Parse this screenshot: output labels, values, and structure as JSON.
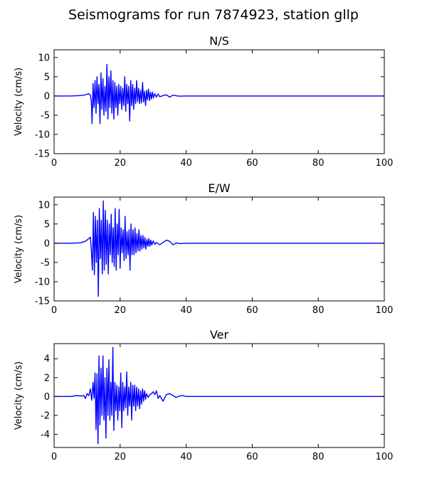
{
  "figure": {
    "suptitle": "Seismograms for run 7874923, station gllp"
  },
  "chart_data": [
    {
      "type": "line",
      "title": "N/S",
      "xlabel": "",
      "ylabel": "Velocity (cm/s)",
      "xlim": [
        0,
        100
      ],
      "ylim": [
        -15,
        12
      ],
      "xticks": [
        0,
        20,
        40,
        60,
        80,
        100
      ],
      "yticks": [
        -15,
        -10,
        -5,
        0,
        5,
        10
      ],
      "grid": false,
      "line_color": "#0000ff",
      "series": [
        {
          "x": [
            0,
            5,
            8,
            9.5,
            10.5,
            11.0,
            11.3,
            11.5,
            11.8,
            12.1,
            12.4,
            12.7,
            13.0,
            13.3,
            13.6,
            13.9,
            14.2,
            14.5,
            14.8,
            15.1,
            15.4,
            15.7,
            16.0,
            16.3,
            16.6,
            16.9,
            17.2,
            17.5,
            17.8,
            18.1,
            18.4,
            18.7,
            19.0,
            19.3,
            19.6,
            19.9,
            20.2,
            20.5,
            20.8,
            21.1,
            21.4,
            21.7,
            22.0,
            22.3,
            22.6,
            22.9,
            23.2,
            23.5,
            23.8,
            24.1,
            24.4,
            24.7,
            25.0,
            25.3,
            25.6,
            25.9,
            26.2,
            26.5,
            26.8,
            27.1,
            27.4,
            27.7,
            28.0,
            28.3,
            28.6,
            28.9,
            29.2,
            29.5,
            29.8,
            30.1,
            30.5,
            31,
            31.5,
            32,
            33,
            34,
            35,
            36,
            37,
            38,
            40,
            50,
            70,
            100
          ],
          "y": [
            0,
            0,
            0.1,
            0.3,
            0.6,
            0.2,
            -1.5,
            -7.2,
            3.2,
            -3.0,
            4.0,
            -4.5,
            5.0,
            -2.0,
            3.0,
            -7.2,
            6.0,
            -3.5,
            4.5,
            -5.0,
            2.5,
            -4.0,
            8.2,
            -6.0,
            5.0,
            -3.0,
            6.5,
            -4.5,
            4.0,
            -6.0,
            3.5,
            -3.0,
            2.5,
            -5.0,
            3.0,
            -2.0,
            2.5,
            -3.5,
            2.0,
            -2.5,
            5.0,
            -4.0,
            3.0,
            -2.0,
            2.5,
            -6.5,
            4.0,
            -2.5,
            3.0,
            -3.5,
            2.0,
            -2.0,
            4.0,
            -1.5,
            2.0,
            -2.0,
            1.5,
            -1.8,
            3.5,
            -1.5,
            1.2,
            -2.5,
            1.5,
            -1.0,
            1.8,
            -1.2,
            1.0,
            -0.8,
            1.0,
            -0.5,
            0.6,
            -0.3,
            0.5,
            -0.2,
            0.1,
            0.3,
            -0.3,
            0.2,
            0.05,
            -0.05,
            0,
            0,
            0,
            0
          ]
        }
      ]
    },
    {
      "type": "line",
      "title": "E/W",
      "xlabel": "",
      "ylabel": "Velocity (cm/s)",
      "xlim": [
        0,
        100
      ],
      "ylim": [
        -15,
        12
      ],
      "xticks": [
        0,
        20,
        40,
        60,
        80,
        100
      ],
      "yticks": [
        -15,
        -10,
        -5,
        0,
        5,
        10
      ],
      "grid": false,
      "line_color": "#0000ff",
      "series": [
        {
          "x": [
            0,
            5,
            8,
            9.5,
            10.5,
            11.0,
            11.3,
            11.6,
            11.9,
            12.2,
            12.5,
            12.8,
            13.1,
            13.4,
            13.7,
            14.0,
            14.3,
            14.6,
            14.9,
            15.2,
            15.5,
            15.8,
            16.1,
            16.4,
            16.7,
            17.0,
            17.3,
            17.6,
            17.9,
            18.2,
            18.5,
            18.8,
            19.1,
            19.4,
            19.7,
            20.0,
            20.3,
            20.6,
            20.9,
            21.2,
            21.5,
            21.8,
            22.1,
            22.4,
            22.7,
            23.0,
            23.3,
            23.6,
            23.9,
            24.2,
            24.5,
            24.8,
            25.1,
            25.4,
            25.7,
            26.0,
            26.3,
            26.6,
            26.9,
            27.2,
            27.5,
            27.8,
            28.1,
            28.4,
            28.7,
            29.0,
            29.3,
            29.6,
            30.0,
            30.5,
            31,
            32,
            33,
            34,
            35,
            36,
            37,
            38,
            40,
            50,
            70,
            100
          ],
          "y": [
            0,
            0,
            0.1,
            0.5,
            1.2,
            1.6,
            -2.0,
            -7.0,
            8.0,
            -8.2,
            7.0,
            -5.0,
            6.0,
            -13.8,
            9.0,
            -4.0,
            6.0,
            -8.0,
            11.0,
            -7.0,
            8.5,
            -5.5,
            6.0,
            -8.0,
            5.0,
            -3.0,
            7.5,
            -5.0,
            4.0,
            -6.0,
            9.0,
            -7.0,
            5.0,
            -3.0,
            8.8,
            -6.5,
            4.0,
            -2.5,
            3.5,
            -4.5,
            7.0,
            -4.0,
            3.0,
            -3.0,
            3.5,
            -7.0,
            5.0,
            -3.0,
            3.5,
            -3.0,
            4.0,
            -2.5,
            2.5,
            -2.0,
            3.5,
            -2.0,
            2.0,
            -1.5,
            2.0,
            -1.2,
            1.5,
            -1.5,
            1.0,
            -0.8,
            1.2,
            -0.8,
            0.8,
            -0.5,
            0.6,
            -0.3,
            0.2,
            -0.4,
            0.2,
            0.8,
            0.5,
            -0.4,
            0.1,
            -0.1,
            0,
            0,
            0,
            0
          ]
        }
      ]
    },
    {
      "type": "line",
      "title": "Ver",
      "xlabel": "",
      "ylabel": "Velocity (cm/s)",
      "xlim": [
        0,
        100
      ],
      "ylim": [
        -5.4,
        5.6
      ],
      "xticks": [
        0,
        20,
        40,
        60,
        80,
        100
      ],
      "yticks": [
        -4,
        -2,
        0,
        2,
        4
      ],
      "grid": false,
      "line_color": "#0000ff",
      "series": [
        {
          "x": [
            0,
            5,
            7,
            8,
            9,
            9.5,
            10,
            10.5,
            11,
            11.4,
            11.8,
            12.1,
            12.4,
            12.7,
            13.0,
            13.3,
            13.6,
            13.9,
            14.2,
            14.5,
            14.8,
            15.1,
            15.4,
            15.7,
            16.0,
            16.3,
            16.6,
            16.9,
            17.2,
            17.5,
            17.8,
            18.1,
            18.4,
            18.7,
            19.0,
            19.3,
            19.6,
            19.9,
            20.2,
            20.5,
            20.8,
            21.1,
            21.4,
            21.7,
            22.0,
            22.3,
            22.6,
            22.9,
            23.2,
            23.5,
            23.8,
            24.1,
            24.4,
            24.7,
            25.0,
            25.3,
            25.6,
            25.9,
            26.2,
            26.5,
            26.8,
            27.1,
            27.4,
            27.7,
            28.0,
            28.5,
            29,
            29.5,
            30,
            30.5,
            31,
            31.5,
            32,
            33,
            34,
            35,
            36,
            37,
            38,
            39,
            40,
            50,
            70,
            100
          ],
          "y": [
            0,
            0,
            0.1,
            0.05,
            0.1,
            -0.2,
            0.3,
            0.1,
            0.8,
            -0.4,
            1.5,
            -0.2,
            2.5,
            -3.5,
            2.4,
            -5.0,
            4.3,
            -3.0,
            3.0,
            -2.0,
            4.3,
            -2.5,
            2.0,
            -4.4,
            3.0,
            -2.0,
            3.9,
            -2.5,
            1.5,
            -2.0,
            5.2,
            -3.6,
            1.5,
            -1.5,
            1.2,
            -2.5,
            1.0,
            -1.5,
            2.5,
            -3.3,
            1.5,
            -1.5,
            1.0,
            -1.2,
            2.6,
            -2.0,
            1.0,
            -1.0,
            1.5,
            -2.5,
            1.2,
            -1.0,
            1.2,
            -1.5,
            1.0,
            -1.0,
            0.8,
            -1.3,
            0.6,
            -0.8,
            0.8,
            -0.5,
            0.6,
            -0.3,
            0.3,
            -0.1,
            0.2,
            0.3,
            0.5,
            0.2,
            0.6,
            -0.2,
            0.1,
            -0.5,
            0.2,
            0.3,
            0.1,
            -0.1,
            0.05,
            0.1,
            0,
            0,
            0,
            0
          ]
        }
      ]
    }
  ]
}
